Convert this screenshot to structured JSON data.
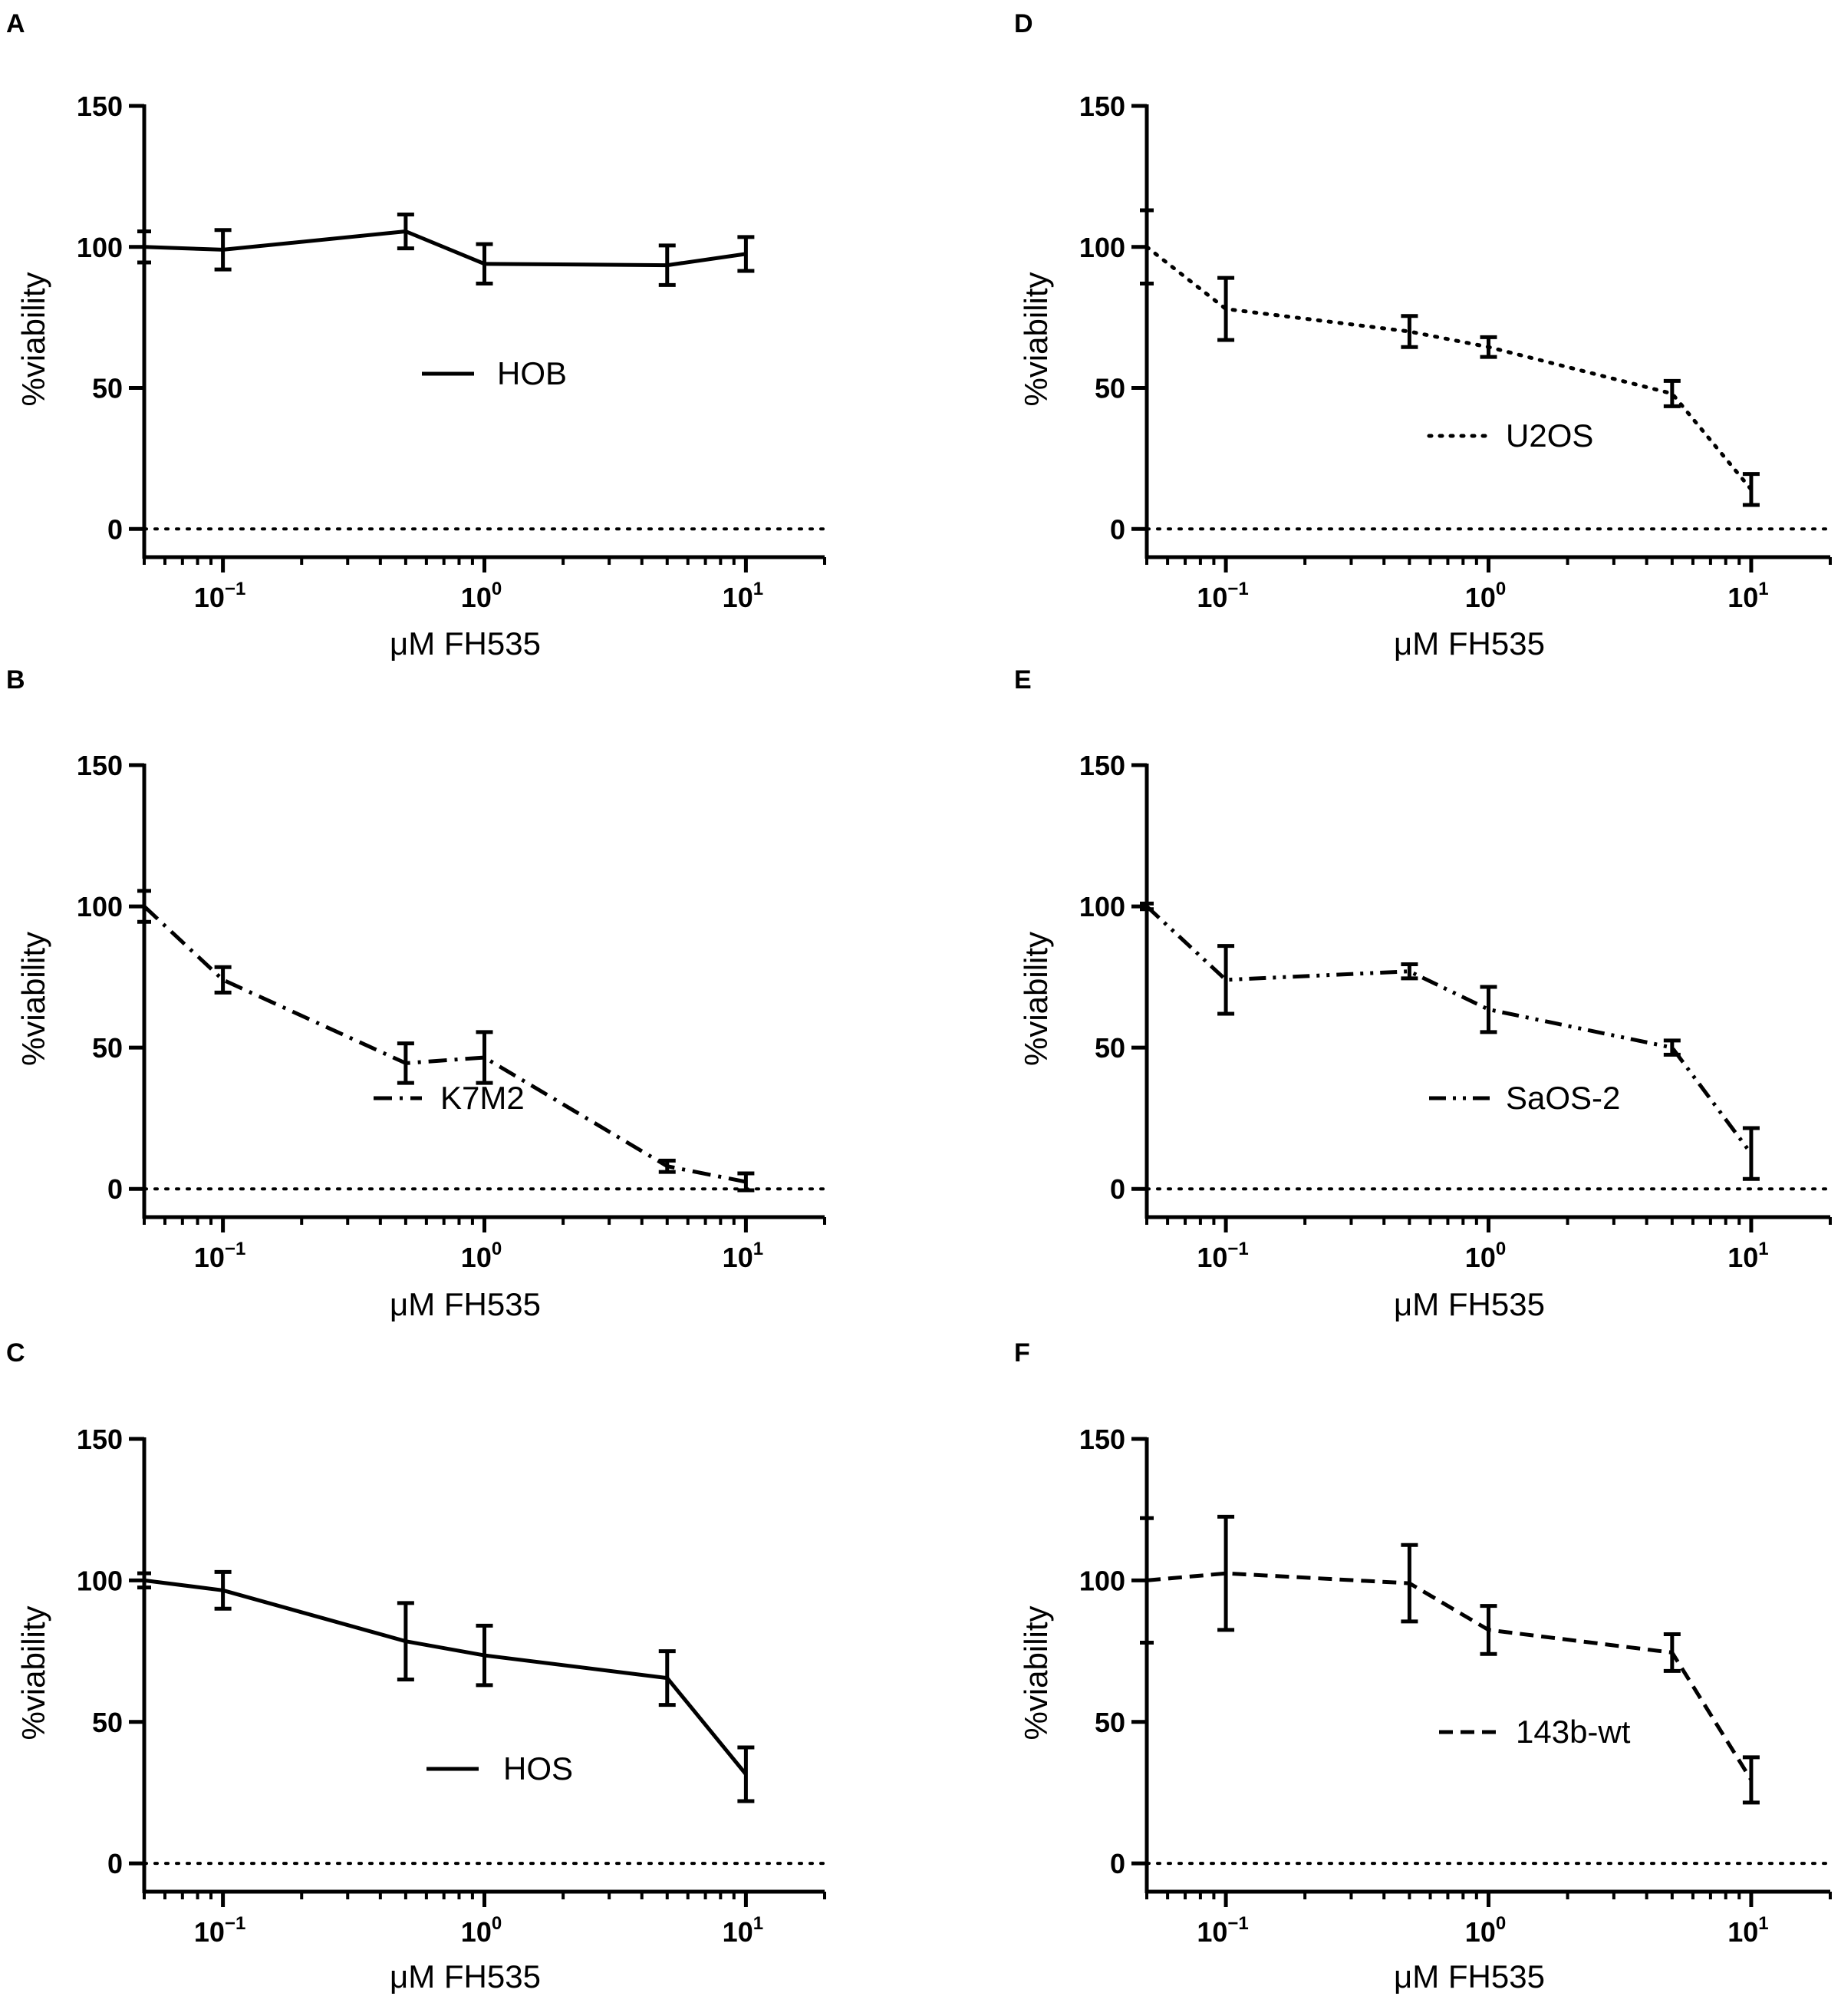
{
  "figure": {
    "background": "#ffffff",
    "ink": "#000000"
  },
  "chart_data": [
    {
      "panel": "A",
      "type": "line",
      "series_name": "HOB",
      "line_style": "solid",
      "x": [
        0.05,
        0.1,
        0.5,
        1,
        5,
        10
      ],
      "y": [
        100,
        99,
        105.5,
        94,
        93.5,
        97.5
      ],
      "err": [
        5.5,
        7,
        6,
        7,
        7,
        6
      ],
      "xlabel": "μM FH535",
      "ylabel": "%viability",
      "xscale": "log",
      "xlim": [
        0.05,
        20
      ],
      "ylim": [
        -10,
        150
      ],
      "yticks": [
        0,
        50,
        100,
        150
      ],
      "reference_line_y": 0,
      "legend_pos": "center"
    },
    {
      "panel": "B",
      "type": "line",
      "series_name": "K7M2",
      "line_style": "dash-dot",
      "x": [
        0.05,
        0.1,
        0.5,
        1,
        5,
        10
      ],
      "y": [
        100,
        74,
        44.5,
        46.5,
        8,
        2.5
      ],
      "err": [
        5.5,
        4.5,
        7,
        9,
        2,
        3
      ],
      "xlabel": "μM FH535",
      "ylabel": "%viability",
      "xscale": "log",
      "xlim": [
        0.05,
        20
      ],
      "ylim": [
        -10,
        150
      ],
      "yticks": [
        0,
        50,
        100,
        150
      ],
      "reference_line_y": 0,
      "legend_pos": "bottom-center"
    },
    {
      "panel": "C",
      "type": "line",
      "series_name": "HOS",
      "line_style": "solid",
      "x": [
        0.05,
        0.1,
        0.5,
        1,
        5,
        10
      ],
      "y": [
        100,
        96.5,
        78.5,
        73.5,
        65.5,
        31.5
      ],
      "err": [
        2.5,
        6.5,
        13.5,
        10.5,
        9.5,
        9.5
      ],
      "xlabel": "μM FH535",
      "ylabel": "%viability",
      "xscale": "log",
      "xlim": [
        0.05,
        20
      ],
      "ylim": [
        -10,
        150
      ],
      "yticks": [
        0,
        50,
        100,
        150
      ],
      "reference_line_y": 0,
      "legend_pos": "bottom-center"
    },
    {
      "panel": "D",
      "type": "line",
      "series_name": "U2OS",
      "line_style": "dotted",
      "x": [
        0.05,
        0.1,
        0.5,
        1,
        5,
        10
      ],
      "y": [
        100,
        78,
        70,
        64.5,
        48,
        14
      ],
      "err": [
        13,
        11,
        5.5,
        3.5,
        4.5,
        5.5
      ],
      "xlabel": "μM FH535",
      "ylabel": "%viability",
      "xscale": "log",
      "xlim": [
        0.05,
        20
      ],
      "ylim": [
        -10,
        150
      ],
      "yticks": [
        0,
        50,
        100,
        150
      ],
      "reference_line_y": 0,
      "legend_pos": "bottom-center"
    },
    {
      "panel": "E",
      "type": "line",
      "series_name": "SaOS-2",
      "line_style": "dash-dot-dot",
      "x": [
        0.05,
        0.1,
        0.5,
        1,
        5,
        10
      ],
      "y": [
        100,
        74,
        77,
        63.5,
        50,
        12.5
      ],
      "err": [
        1,
        12,
        2.5,
        8,
        2.5,
        9
      ],
      "xlabel": "μM FH535",
      "ylabel": "%viability",
      "xscale": "log",
      "xlim": [
        0.05,
        20
      ],
      "ylim": [
        -10,
        150
      ],
      "yticks": [
        0,
        50,
        100,
        150
      ],
      "reference_line_y": 0,
      "legend_pos": "bottom-center"
    },
    {
      "panel": "F",
      "type": "line",
      "series_name": "143b-wt",
      "line_style": "dashed",
      "x": [
        0.05,
        0.1,
        0.5,
        1,
        5,
        10
      ],
      "y": [
        100,
        102.5,
        99,
        82.5,
        74.5,
        29.5
      ],
      "err": [
        22,
        20,
        13.5,
        8.5,
        6.5,
        8
      ],
      "xlabel": "μM FH535",
      "ylabel": "%viability",
      "xscale": "log",
      "xlim": [
        0.05,
        20
      ],
      "ylim": [
        -10,
        150
      ],
      "yticks": [
        0,
        50,
        100,
        150
      ],
      "reference_line_y": 0,
      "legend_pos": "bottom-center"
    }
  ],
  "xtick_labels": [
    {
      "base": "10",
      "exp": "−1",
      "value": 0.1
    },
    {
      "base": "10",
      "exp": "0",
      "value": 1
    },
    {
      "base": "10",
      "exp": "1",
      "value": 10
    }
  ]
}
